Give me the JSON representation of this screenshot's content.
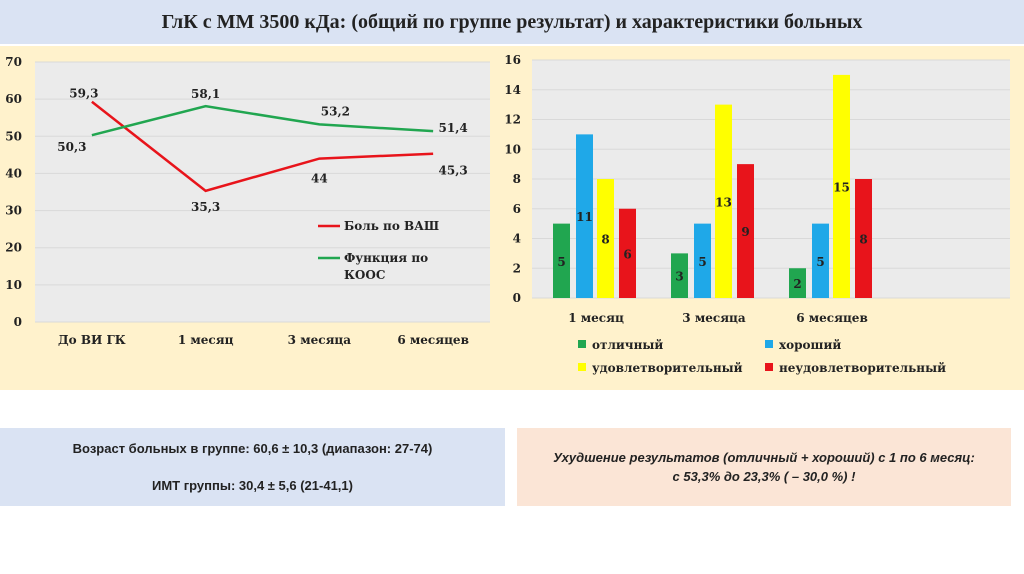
{
  "title": "ГлК с ММ 3500 кДа: (общий по группе результат) и характеристики больных",
  "chart_data": [
    {
      "type": "line",
      "categories": [
        "До ВИ ГК",
        "1 месяц",
        "3 месяца",
        "6 месяцев"
      ],
      "ylim": [
        0,
        70
      ],
      "yticks": [
        0,
        10,
        20,
        30,
        40,
        50,
        60,
        70
      ],
      "series": [
        {
          "name": "Боль по ВАШ",
          "color": "#e8141b",
          "values": [
            59.3,
            35.3,
            44,
            45.3
          ],
          "labels": [
            "59,3",
            "35,3",
            "44",
            "45,3"
          ]
        },
        {
          "name": "Функция по КООС",
          "color": "#21a650",
          "values": [
            50.3,
            58.1,
            53.2,
            51.4
          ],
          "labels": [
            "50,3",
            "58,1",
            "53,2",
            "51,4"
          ]
        }
      ],
      "legend_lines": [
        [
          "Боль по ВАШ"
        ],
        [
          "Функция по",
          "КООС"
        ]
      ],
      "legend": "inside-right"
    },
    {
      "type": "bar",
      "categories": [
        "1 месяц",
        "3 месяца",
        "6 месяцев"
      ],
      "ylim": [
        0,
        16
      ],
      "yticks": [
        0,
        2,
        4,
        6,
        8,
        10,
        12,
        14,
        16
      ],
      "series": [
        {
          "name": "отличный",
          "color": "#21a650",
          "values": [
            5,
            3,
            2
          ]
        },
        {
          "name": "хороший",
          "color": "#1fa8e8",
          "values": [
            11,
            5,
            5
          ]
        },
        {
          "name": "удовлетворительный",
          "color": "#ffff00",
          "values": [
            8,
            13,
            15
          ]
        },
        {
          "name": "неудовлетворительный",
          "color": "#e8141b",
          "values": [
            6,
            9,
            8
          ]
        }
      ],
      "legend": "bottom"
    }
  ],
  "info": {
    "age": "Возраст больных в группе: 60,6 ± 10,3 (диапазон: 27-74)",
    "bmi": "ИМТ группы: 30,4 ± 5,6 (21-41,1)"
  },
  "conclusion": {
    "line1": "Ухудшение результатов (отличный + хороший) с 1 по 6 месяц:",
    "line2": "с 53,3% до 23,3% ( – 30,0 %) !"
  }
}
